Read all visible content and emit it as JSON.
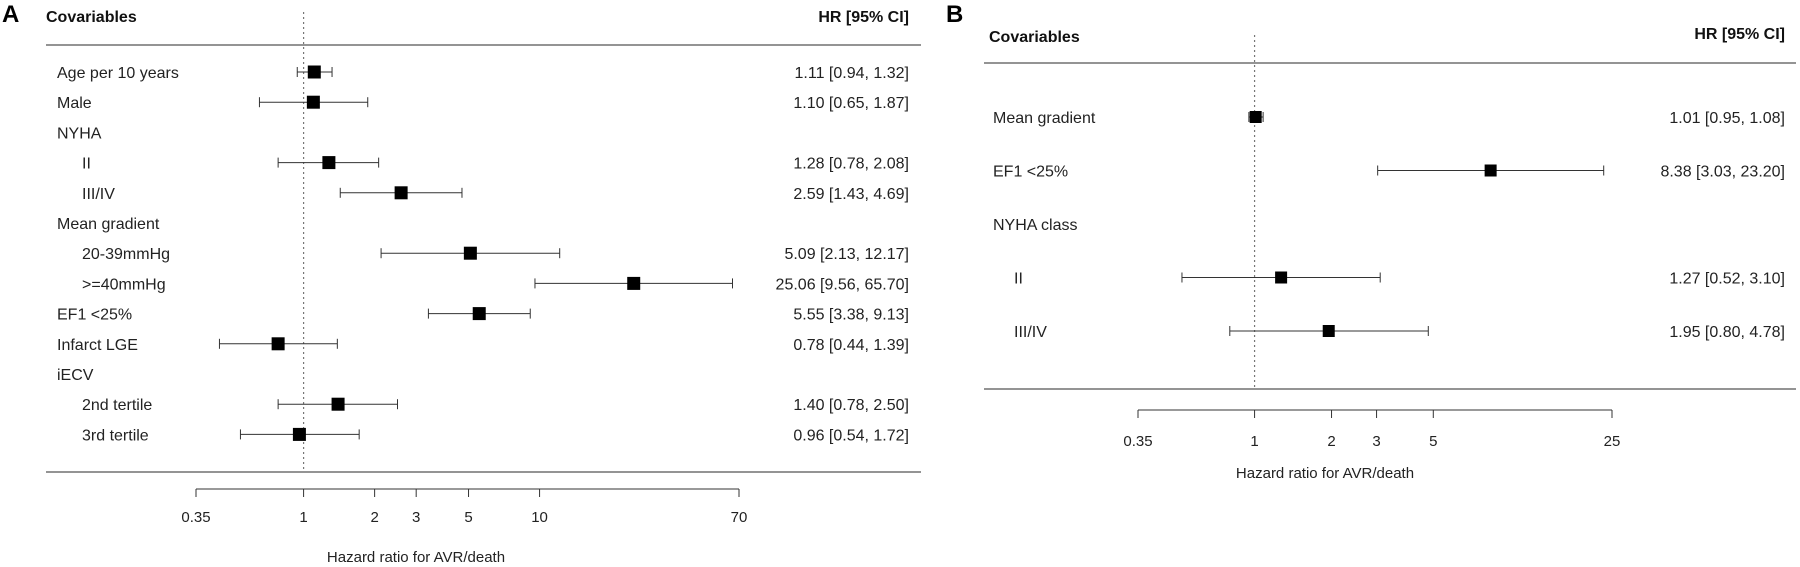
{
  "chart_data": [
    {
      "panel": "A",
      "type": "forest",
      "header_left": "Covariables",
      "header_right": "HR [95% CI]",
      "xlabel": "Hazard ratio for AVR/death",
      "x_scale": "log",
      "xlim": [
        0.35,
        70
      ],
      "ticks": [
        "0.35",
        "1",
        "2",
        "3",
        "5",
        "10",
        "70"
      ],
      "tick_values": [
        0.35,
        1,
        2,
        3,
        5,
        10,
        70
      ],
      "reference_line": 1,
      "rows": [
        {
          "label": "Age per 10 years",
          "indent": 0,
          "hr": 1.11,
          "lo": 0.94,
          "hi": 1.32,
          "text": "1.11 [0.94,  1.32]"
        },
        {
          "label": "Male",
          "indent": 0,
          "hr": 1.1,
          "lo": 0.65,
          "hi": 1.87,
          "text": "1.10 [0.65,  1.87]"
        },
        {
          "label": "NYHA",
          "indent": 0
        },
        {
          "label": "II",
          "indent": 1,
          "hr": 1.28,
          "lo": 0.78,
          "hi": 2.08,
          "text": "1.28 [0.78,  2.08]"
        },
        {
          "label": "III/IV",
          "indent": 1,
          "hr": 2.59,
          "lo": 1.43,
          "hi": 4.69,
          "text": "2.59 [1.43,  4.69]"
        },
        {
          "label": "Mean gradient",
          "indent": 0
        },
        {
          "label": "20-39mmHg",
          "indent": 1,
          "hr": 5.09,
          "lo": 2.13,
          "hi": 12.17,
          "text": "5.09 [2.13, 12.17]"
        },
        {
          "label": ">=40mmHg",
          "indent": 1,
          "hr": 25.06,
          "lo": 9.56,
          "hi": 65.7,
          "text": "25.06 [9.56, 65.70]"
        },
        {
          "label": "EF1 <25%",
          "indent": 0,
          "hr": 5.55,
          "lo": 3.38,
          "hi": 9.13,
          "text": "5.55 [3.38,  9.13]"
        },
        {
          "label": "Infarct LGE",
          "indent": 0,
          "hr": 0.78,
          "lo": 0.44,
          "hi": 1.39,
          "text": "0.78 [0.44,  1.39]"
        },
        {
          "label": "iECV",
          "indent": 0
        },
        {
          "label": "2nd tertile",
          "indent": 1,
          "hr": 1.4,
          "lo": 0.78,
          "hi": 2.5,
          "text": "1.40 [0.78,  2.50]"
        },
        {
          "label": "3rd tertile",
          "indent": 1,
          "hr": 0.96,
          "lo": 0.54,
          "hi": 1.72,
          "text": "0.96 [0.54,  1.72]"
        }
      ]
    },
    {
      "panel": "B",
      "type": "forest",
      "header_left": "Covariables",
      "header_right": "HR [95% CI]",
      "xlabel": "Hazard ratio for AVR/death",
      "x_scale": "log",
      "xlim": [
        0.35,
        25
      ],
      "ticks": [
        "0.35",
        "1",
        "2",
        "3",
        "5",
        "25"
      ],
      "tick_values": [
        0.35,
        1,
        2,
        3,
        5,
        25
      ],
      "reference_line": 1,
      "rows": [
        {
          "label": "Mean gradient",
          "indent": 0,
          "hr": 1.01,
          "lo": 0.95,
          "hi": 1.08,
          "text": "1.01 [0.95,  1.08]"
        },
        {
          "label": "EF1 <25%",
          "indent": 0,
          "hr": 8.38,
          "lo": 3.03,
          "hi": 23.2,
          "text": "8.38 [3.03, 23.20]"
        },
        {
          "label": "NYHA class",
          "indent": 0
        },
        {
          "label": "II",
          "indent": 1,
          "hr": 1.27,
          "lo": 0.52,
          "hi": 3.1,
          "text": "1.27 [0.52,  3.10]"
        },
        {
          "label": "III/IV",
          "indent": 1,
          "hr": 1.95,
          "lo": 0.8,
          "hi": 4.78,
          "text": "1.95 [0.80,  4.78]"
        }
      ]
    }
  ]
}
